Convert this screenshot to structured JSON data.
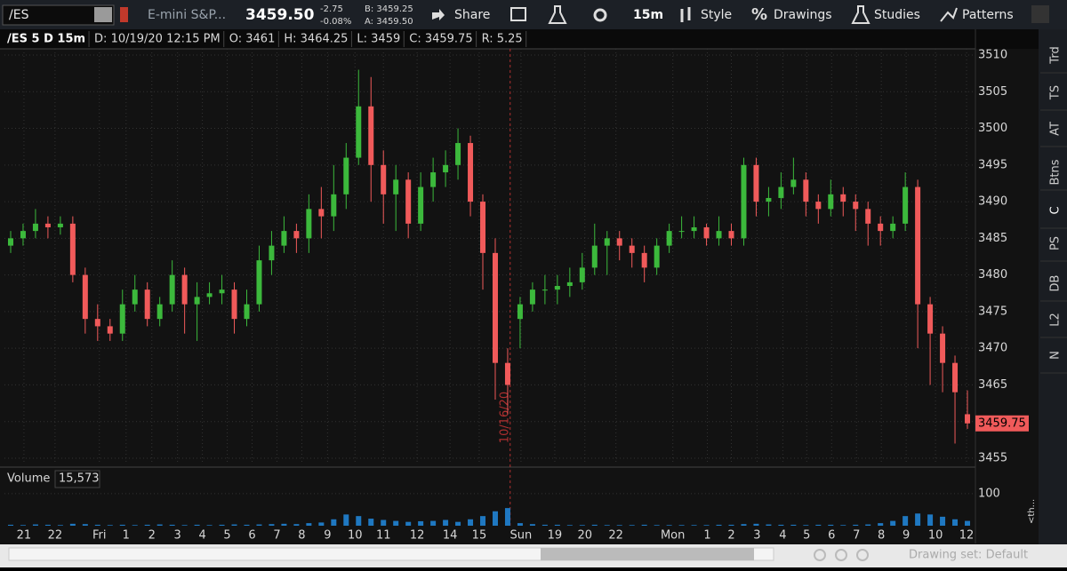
{
  "toolbar": {
    "symbol": "/ES",
    "description": "E-mini S&P...",
    "last": "3459.50",
    "change": "-2.75",
    "change_pct": "-0.08%",
    "bid": "B: 3459.25",
    "ask": "A: 3459.50",
    "buttons": [
      "Share",
      "15m",
      "Style",
      "Drawings",
      "Studies",
      "Patterns"
    ]
  },
  "info_bar": [
    "/ES 5 D 15m",
    "D: 10/19/20 12:15 PM",
    "O: 3461",
    "H: 3464.25",
    "L: 3459",
    "C: 3459.75",
    "R: 5.25"
  ],
  "side_tabs": [
    "Trd",
    "TS",
    "AT",
    "Btns",
    "C",
    "PS",
    "DB",
    "L2",
    "N"
  ],
  "side_label": "<th...",
  "footer": {
    "drawing_set": "Drawing set: Default"
  },
  "chart_data": {
    "type": "candlestick",
    "up_color": "#3cb93c",
    "down_color": "#f05a5a",
    "grid": true,
    "open": [
      3484,
      3485,
      3486,
      3487,
      3486.5,
      3487,
      3480,
      3474,
      3473,
      3472,
      3476,
      3478,
      3474,
      3476,
      3480,
      3476,
      3477,
      3477.5,
      3478,
      3474,
      3476,
      3482,
      3484,
      3486,
      3485,
      3489,
      3488,
      3491,
      3496,
      3503,
      3495,
      3491,
      3493,
      3487,
      3492,
      3494,
      3495,
      3498,
      3490,
      3483,
      3468,
      3474,
      3476,
      3478,
      3478,
      3478.5,
      3479,
      3481,
      3484,
      3485,
      3484,
      3483,
      3481,
      3484,
      3486,
      3486,
      3486.5,
      3485,
      3486,
      3485,
      3495,
      3490,
      3490.5,
      3492,
      3493,
      3490,
      3489,
      3491,
      3490,
      3489,
      3487,
      3486,
      3487,
      3492,
      3476,
      3472,
      3468,
      3461
    ],
    "high": [
      3486,
      3487,
      3489,
      3488,
      3488,
      3488,
      3481,
      3476,
      3474,
      3478,
      3480,
      3479,
      3477,
      3482,
      3481,
      3479,
      3479,
      3480,
      3479,
      3478,
      3484,
      3486,
      3488,
      3487,
      3491,
      3492,
      3495,
      3498,
      3508,
      3507,
      3497,
      3495,
      3494,
      3494,
      3496,
      3497,
      3500,
      3499,
      3491,
      3485,
      3470,
      3477,
      3479,
      3480,
      3480,
      3481,
      3483,
      3487,
      3486,
      3486,
      3485,
      3484,
      3485,
      3487,
      3488,
      3488,
      3487,
      3488,
      3487,
      3496,
      3496,
      3492,
      3494,
      3496,
      3494,
      3491,
      3493,
      3492,
      3491,
      3490,
      3488,
      3488,
      3494,
      3493,
      3477,
      3473,
      3469,
      3464.25
    ],
    "low": [
      3483,
      3484,
      3485,
      3485,
      3485.5,
      3479,
      3472,
      3471,
      3471,
      3471,
      3475,
      3473,
      3473,
      3475,
      3472,
      3471,
      3476,
      3476,
      3472,
      3473,
      3475,
      3480,
      3483,
      3483,
      3483,
      3485,
      3486,
      3489,
      3495,
      3490,
      3487,
      3486,
      3485,
      3486,
      3490,
      3492,
      3493,
      3488,
      3478,
      3463,
      3461,
      3470,
      3475,
      3476,
      3476,
      3477,
      3478,
      3480,
      3480,
      3482,
      3481,
      3479,
      3480,
      3483,
      3485,
      3485,
      3484,
      3484,
      3484,
      3484,
      3488,
      3488,
      3489,
      3491,
      3488,
      3487,
      3488,
      3488,
      3486,
      3484,
      3484,
      3485,
      3486,
      3470,
      3465,
      3464,
      3457,
      3459
    ],
    "close": [
      3485,
      3486,
      3487,
      3486.5,
      3487,
      3480,
      3474,
      3473,
      3472,
      3476,
      3478,
      3474,
      3476,
      3480,
      3476,
      3477,
      3477.5,
      3478,
      3474,
      3476,
      3482,
      3484,
      3486,
      3485,
      3489,
      3488,
      3491,
      3496,
      3503,
      3495,
      3491,
      3493,
      3487,
      3492,
      3494,
      3495,
      3498,
      3490,
      3483,
      3468,
      3465,
      3476,
      3478,
      3478,
      3478.5,
      3479,
      3481,
      3484,
      3485,
      3484,
      3483,
      3481,
      3484,
      3486,
      3486,
      3486.5,
      3485,
      3486,
      3485,
      3495,
      3490,
      3490.5,
      3492,
      3493,
      3490,
      3489,
      3491,
      3490,
      3489,
      3487,
      3486,
      3487,
      3492,
      3476,
      3472,
      3468,
      3464,
      3459.75
    ],
    "last_price": {
      "value": 3459.75,
      "label": "3459.75"
    },
    "session_marker": {
      "x": 40.2,
      "label": "10/16/20"
    },
    "xlim": [
      -0.5,
      77.5
    ],
    "xticks": [
      {
        "value": 1.07,
        "label": "21"
      },
      {
        "value": 3.57,
        "label": "22"
      },
      {
        "value": 7.14,
        "label": "Fri"
      },
      {
        "value": 9.29,
        "label": "1"
      },
      {
        "value": 11.36,
        "label": "2"
      },
      {
        "value": 13.43,
        "label": "3"
      },
      {
        "value": 15.43,
        "label": "4"
      },
      {
        "value": 17.43,
        "label": "5"
      },
      {
        "value": 19.43,
        "label": "6"
      },
      {
        "value": 21.43,
        "label": "7"
      },
      {
        "value": 23.43,
        "label": "8"
      },
      {
        "value": 25.5,
        "label": "9"
      },
      {
        "value": 27.71,
        "label": "10"
      },
      {
        "value": 30,
        "label": "11"
      },
      {
        "value": 32.71,
        "label": "12"
      },
      {
        "value": 35.36,
        "label": "14"
      },
      {
        "value": 37.71,
        "label": "15"
      },
      {
        "value": 41.07,
        "label": "Sun"
      },
      {
        "value": 43.79,
        "label": "19"
      },
      {
        "value": 46.21,
        "label": "20"
      },
      {
        "value": 48.71,
        "label": "22"
      },
      {
        "value": 53.29,
        "label": "Mon"
      },
      {
        "value": 56.07,
        "label": "1"
      },
      {
        "value": 58,
        "label": "2"
      },
      {
        "value": 60.07,
        "label": "3"
      },
      {
        "value": 62.14,
        "label": "4"
      },
      {
        "value": 64.07,
        "label": "5"
      },
      {
        "value": 66.07,
        "label": "6"
      },
      {
        "value": 68.07,
        "label": "7"
      },
      {
        "value": 70.07,
        "label": "8"
      },
      {
        "value": 72.07,
        "label": "9"
      },
      {
        "value": 74.43,
        "label": "10"
      },
      {
        "value": 76.93,
        "label": "12"
      }
    ],
    "ylim": [
      3454.27,
      3510.85
    ],
    "yticks": [
      3455,
      3460,
      3465,
      3470,
      3475,
      3480,
      3485,
      3490,
      3495,
      3500,
      3505,
      3510
    ],
    "volume": {
      "title": "Volume",
      "last_label": "15,573",
      "color": "#1f78c1",
      "ylim": [
        0,
        119
      ],
      "yticks": [
        100
      ],
      "values": [
        3,
        2,
        4,
        3,
        2,
        6,
        5,
        3,
        2,
        3,
        2,
        3,
        4,
        3,
        2,
        3,
        2,
        3,
        4,
        3,
        4,
        5,
        6,
        5,
        8,
        10,
        20,
        35,
        30,
        22,
        18,
        15,
        12,
        14,
        15,
        18,
        12,
        20,
        30,
        45,
        55,
        8,
        5,
        3,
        3,
        2,
        2,
        3,
        2,
        2,
        2,
        3,
        2,
        2,
        2,
        2,
        2,
        3,
        3,
        5,
        6,
        4,
        3,
        3,
        2,
        3,
        3,
        2,
        3,
        4,
        8,
        15,
        30,
        38,
        35,
        28,
        20,
        15
      ]
    }
  }
}
